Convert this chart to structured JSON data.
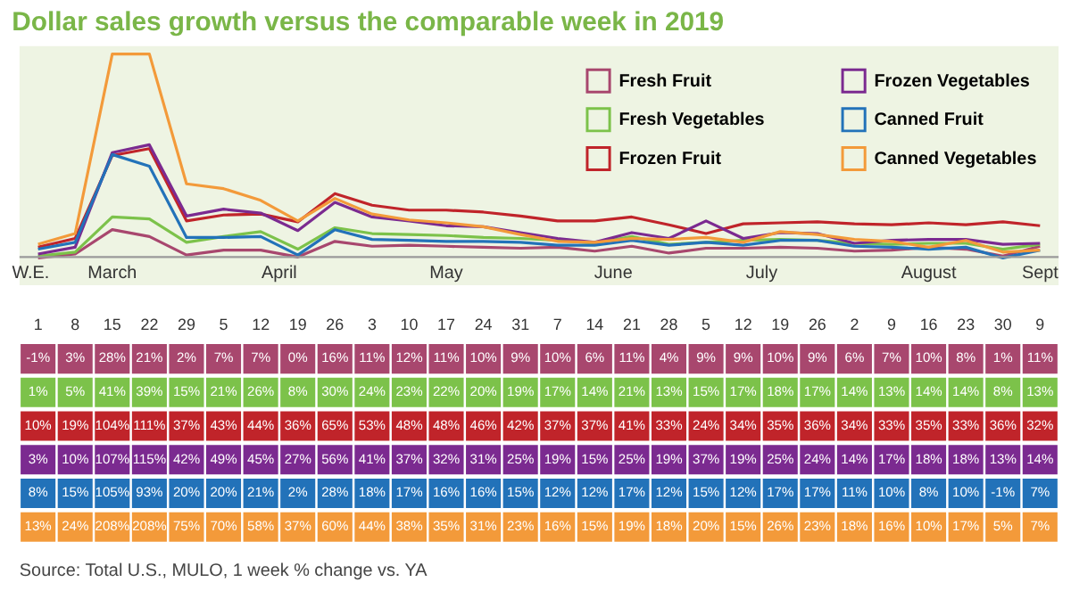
{
  "chart_data": {
    "type": "line",
    "title": "Dollar sales growth versus the comparable week in 2019",
    "categories": [
      "1",
      "8",
      "15",
      "22",
      "29",
      "5",
      "12",
      "19",
      "26",
      "3",
      "10",
      "17",
      "24",
      "31",
      "7",
      "14",
      "21",
      "28",
      "5",
      "12",
      "19",
      "26",
      "2",
      "9",
      "16",
      "23",
      "30",
      "9"
    ],
    "series": [
      {
        "name": "Fresh Fruit",
        "color": "#a8476e",
        "values": [
          -1,
          3,
          28,
          21,
          2,
          7,
          7,
          0,
          16,
          11,
          12,
          11,
          10,
          9,
          10,
          6,
          11,
          4,
          9,
          9,
          10,
          9,
          6,
          7,
          10,
          8,
          1,
          11
        ],
        "value_labels": [
          "-1%",
          "3%",
          "28%",
          "21%",
          "2%",
          "7%",
          "7%",
          "0%",
          "16%",
          "11%",
          "12%",
          "11%",
          "10%",
          "9%",
          "10%",
          "6%",
          "11%",
          "4%",
          "9%",
          "9%",
          "10%",
          "9%",
          "6%",
          "7%",
          "10%",
          "8%",
          "1%",
          "11%"
        ]
      },
      {
        "name": "Fresh Vegetables",
        "color": "#7cc24a",
        "values": [
          1,
          5,
          41,
          39,
          15,
          21,
          26,
          8,
          30,
          24,
          23,
          22,
          20,
          19,
          17,
          14,
          21,
          13,
          15,
          17,
          18,
          17,
          14,
          13,
          14,
          14,
          8,
          13
        ],
        "value_labels": [
          "1%",
          "5%",
          "41%",
          "39%",
          "15%",
          "21%",
          "26%",
          "8%",
          "30%",
          "24%",
          "23%",
          "22%",
          "20%",
          "19%",
          "17%",
          "14%",
          "21%",
          "13%",
          "15%",
          "17%",
          "18%",
          "17%",
          "14%",
          "13%",
          "14%",
          "14%",
          "8%",
          "13%"
        ]
      },
      {
        "name": "Frozen Fruit",
        "color": "#c0242a",
        "values": [
          10,
          19,
          104,
          111,
          37,
          43,
          44,
          36,
          65,
          53,
          48,
          48,
          46,
          42,
          37,
          37,
          41,
          33,
          24,
          34,
          35,
          36,
          34,
          33,
          35,
          33,
          36,
          32
        ],
        "value_labels": [
          "10%",
          "19%",
          "104%",
          "111%",
          "37%",
          "43%",
          "44%",
          "36%",
          "65%",
          "53%",
          "48%",
          "48%",
          "46%",
          "42%",
          "37%",
          "37%",
          "41%",
          "33%",
          "24%",
          "34%",
          "35%",
          "36%",
          "34%",
          "33%",
          "35%",
          "33%",
          "36%",
          "32%"
        ]
      },
      {
        "name": "Frozen Vegetables",
        "color": "#7b2a90",
        "values": [
          3,
          10,
          107,
          115,
          42,
          49,
          45,
          27,
          56,
          41,
          37,
          32,
          31,
          25,
          19,
          15,
          25,
          19,
          37,
          19,
          25,
          24,
          14,
          17,
          18,
          18,
          13,
          14
        ],
        "value_labels": [
          "3%",
          "10%",
          "107%",
          "115%",
          "42%",
          "49%",
          "45%",
          "27%",
          "56%",
          "41%",
          "37%",
          "32%",
          "31%",
          "25%",
          "19%",
          "15%",
          "25%",
          "19%",
          "37%",
          "19%",
          "25%",
          "24%",
          "14%",
          "17%",
          "18%",
          "18%",
          "13%",
          "14%"
        ]
      },
      {
        "name": "Canned Fruit",
        "color": "#2272b9",
        "values": [
          8,
          15,
          105,
          93,
          20,
          20,
          21,
          2,
          28,
          18,
          17,
          16,
          16,
          15,
          12,
          12,
          17,
          12,
          15,
          12,
          17,
          17,
          11,
          10,
          8,
          10,
          -1,
          7
        ],
        "value_labels": [
          "8%",
          "15%",
          "105%",
          "93%",
          "20%",
          "20%",
          "21%",
          "2%",
          "28%",
          "18%",
          "17%",
          "16%",
          "16%",
          "15%",
          "12%",
          "12%",
          "17%",
          "12%",
          "15%",
          "12%",
          "17%",
          "17%",
          "11%",
          "10%",
          "8%",
          "10%",
          "-1%",
          "7%"
        ]
      },
      {
        "name": "Canned Vegetables",
        "color": "#f39a3a",
        "values": [
          13,
          24,
          208,
          208,
          75,
          70,
          58,
          37,
          60,
          44,
          38,
          35,
          31,
          23,
          16,
          15,
          19,
          18,
          20,
          15,
          26,
          23,
          18,
          16,
          10,
          17,
          5,
          7
        ],
        "value_labels": [
          "13%",
          "24%",
          "208%",
          "208%",
          "75%",
          "70%",
          "58%",
          "37%",
          "60%",
          "44%",
          "38%",
          "35%",
          "31%",
          "23%",
          "16%",
          "15%",
          "19%",
          "18%",
          "20%",
          "15%",
          "26%",
          "23%",
          "18%",
          "16%",
          "10%",
          "17%",
          "5%",
          "7%"
        ]
      }
    ],
    "ref_lines": [
      {
        "axis": "y",
        "value": 0,
        "color": "#9a9a9a"
      }
    ],
    "annotations": [
      "W.E.",
      "March",
      "April",
      "May",
      "June",
      "July",
      "August",
      "Sept",
      "Source: Total U.S., MULO, 1 week % change vs. YA"
    ],
    "legend": "top right",
    "grid": false,
    "marker": "none",
    "line_style": "solid",
    "tick_labels": "x"
  }
}
